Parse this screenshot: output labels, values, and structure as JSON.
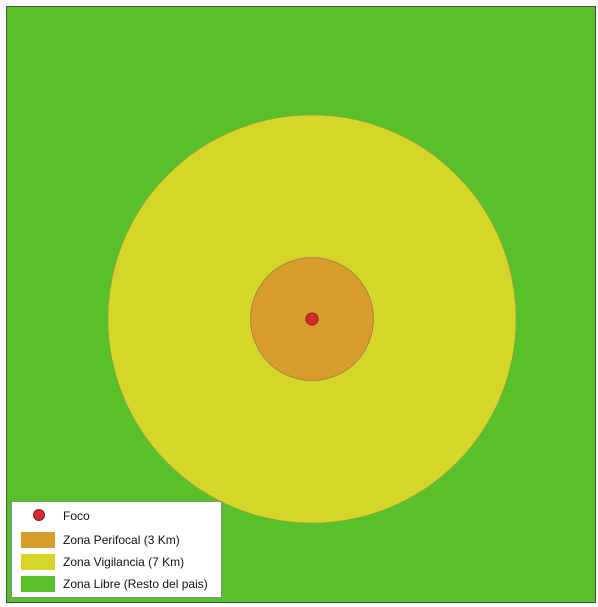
{
  "map": {
    "colors": {
      "free_zone": "#58c02b",
      "surveillance_zone": "#d6d62a",
      "perifocal_zone": "#d89c2e",
      "focus": "#d82a2a"
    }
  },
  "legend": {
    "items": [
      {
        "label": "Foco",
        "symbol": "circle",
        "color": "#d82a2a"
      },
      {
        "label": "Zona Perifocal (3 Km)",
        "symbol": "rectangle",
        "color": "#d89c2e"
      },
      {
        "label": "Zona Vigilancia (7 Km)",
        "symbol": "rectangle",
        "color": "#d6d62a"
      },
      {
        "label": "Zona Libre (Resto del pais)",
        "symbol": "rectangle",
        "color": "#58c02b"
      }
    ]
  }
}
